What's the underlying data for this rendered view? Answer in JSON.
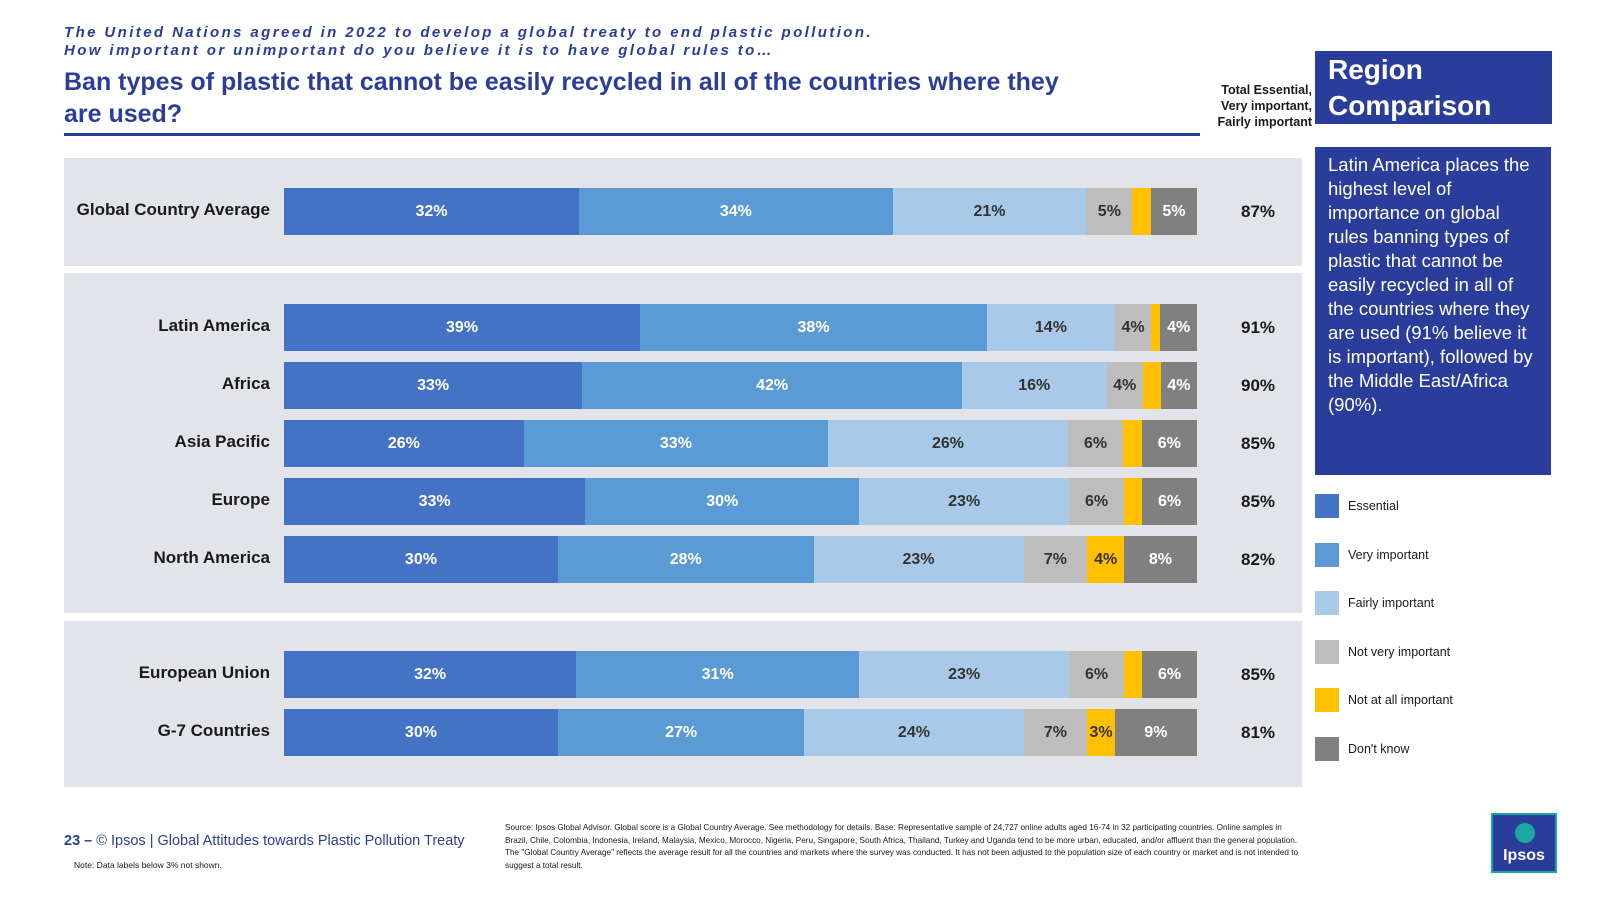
{
  "header": {
    "question_line1": "The United Nations agreed in 2022 to develop a global treaty to end plastic pollution.",
    "question_line2": "How important or unimportant do you believe it is to have global rules to…",
    "title": "Ban types of plastic that cannot be easily recycled in all of the countries where they are used?",
    "total_header": "Total Essential, Very important, Fairly important"
  },
  "sidebar": {
    "region_title": "Region Comparison",
    "insight": "Latin America places the highest level of importance on global rules banning types of plastic that cannot be easily recycled in all of the countries where they are used (91% believe it is important), followed by the Middle East/Africa (90%)."
  },
  "colors": {
    "essential": "#4472c4",
    "very_important": "#5b9bd5",
    "fairly_important": "#a9c9e8",
    "not_very_important": "#bdbdbd",
    "not_at_all_important": "#ffc000",
    "dont_know": "#808080",
    "brand": "#2b3d9a",
    "panel": "#e2e4ea"
  },
  "chart_data": {
    "type": "bar",
    "orientation": "horizontal",
    "stacked": true,
    "series_names": [
      "Essential",
      "Very important",
      "Fairly important",
      "Not very important",
      "Not at all important",
      "Don't know"
    ],
    "xlim": [
      0,
      100
    ],
    "rows": [
      {
        "category": "Global Country Average",
        "values": [
          32,
          34,
          21,
          5,
          2,
          5
        ],
        "labels": [
          "32%",
          "34%",
          "21%",
          "5%",
          "",
          "5%"
        ],
        "total": "87%"
      },
      {
        "category": "Latin America",
        "values": [
          39,
          38,
          14,
          4,
          1,
          4
        ],
        "labels": [
          "39%",
          "38%",
          "14%",
          "4%",
          "",
          "4%"
        ],
        "total": "91%"
      },
      {
        "category": "Africa",
        "values": [
          33,
          42,
          16,
          4,
          2,
          4
        ],
        "labels": [
          "33%",
          "42%",
          "16%",
          "4%",
          "",
          "4%"
        ],
        "total": "90%"
      },
      {
        "category": "Asia Pacific",
        "values": [
          26,
          33,
          26,
          6,
          2,
          6
        ],
        "labels": [
          "26%",
          "33%",
          "26%",
          "6%",
          "",
          "6%"
        ],
        "total": "85%"
      },
      {
        "category": "Europe",
        "values": [
          33,
          30,
          23,
          6,
          2,
          6
        ],
        "labels": [
          "33%",
          "30%",
          "23%",
          "6%",
          "",
          "6%"
        ],
        "total": "85%"
      },
      {
        "category": "North America",
        "values": [
          30,
          28,
          23,
          7,
          4,
          8
        ],
        "labels": [
          "30%",
          "28%",
          "23%",
          "7%",
          "4%",
          "8%"
        ],
        "total": "82%"
      },
      {
        "category": "European Union",
        "values": [
          32,
          31,
          23,
          6,
          2,
          6
        ],
        "labels": [
          "32%",
          "31%",
          "23%",
          "6%",
          "",
          "6%"
        ],
        "total": "85%"
      },
      {
        "category": "G-7 Countries",
        "values": [
          30,
          27,
          24,
          7,
          3,
          9
        ],
        "labels": [
          "30%",
          "27%",
          "24%",
          "7%",
          "3%",
          "9%"
        ],
        "total": "81%"
      }
    ]
  },
  "footer": {
    "page": "23 –",
    "brand": "Ipsos",
    "report": "| Global Attitudes towards Plastic Pollution Treaty",
    "note": "Note: Data labels below 3% not shown.",
    "source": "Source: Ipsos Global Advisor. Global score is a Global Country Average. See methodology for details. Base: Representative sample of 24,727 online adults aged 16-74 in 32 participating countries. Online samples in Brazil, Chile, Colombia, Indonesia, Ireland, Malaysia, Mexico, Morocco, Nigeria, Peru, Singapore, South Africa, Thailand, Turkey and Uganda tend to be more urban, educated, and/or affluent than the general population. The \"Global Country Average\" reflects the average result for all the countries and markets where the survey was conducted. It has not been adjusted to the population size of each country or market and is not intended to suggest a total result.",
    "logo_text": "Ipsos"
  }
}
